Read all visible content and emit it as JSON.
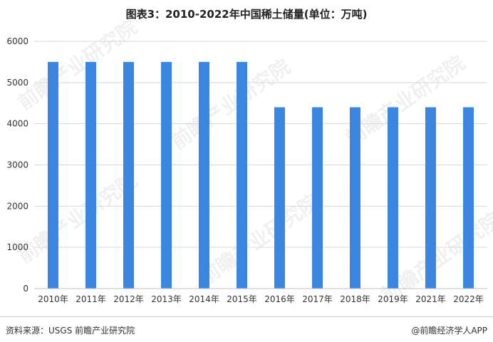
{
  "page": {
    "title": "图表3：2010-2022年中国稀土储量(单位：万吨)",
    "source": "资料来源：USGS 前瞻产业研究院",
    "credit": "@前瞻经济学人APP",
    "watermark": "前瞻产业研究院"
  },
  "chart_data": {
    "type": "bar",
    "title": "图表3：2010-2022年中国稀土储量(单位：万吨)",
    "xlabel": "",
    "ylabel": "",
    "categories": [
      "2010年",
      "2011年",
      "2012年",
      "2013年",
      "2014年",
      "2015年",
      "2016年",
      "2017年",
      "2018年",
      "2019年",
      "2021年",
      "2022年"
    ],
    "values": [
      5500,
      5500,
      5500,
      5500,
      5500,
      5500,
      4400,
      4400,
      4400,
      4400,
      4400,
      4400
    ],
    "ylim": [
      0,
      6000
    ],
    "yticks": [
      0,
      1000,
      2000,
      3000,
      4000,
      5000,
      6000
    ],
    "grid": true,
    "legend": "none",
    "bar_color": "#3a86e0",
    "grid_color": "#d9d9d9"
  }
}
